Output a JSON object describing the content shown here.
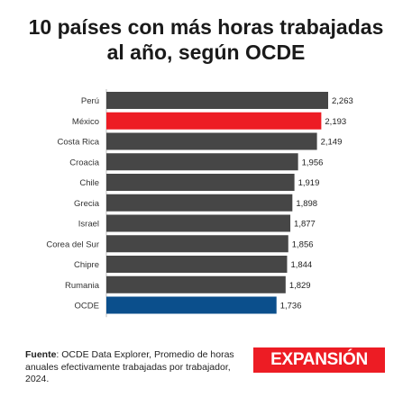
{
  "title_line1": "10 países con más horas trabajadas",
  "title_line2": "al año, según OCDE",
  "chart_data": {
    "type": "bar",
    "orientation": "horizontal",
    "categories": [
      "Perú",
      "México",
      "Costa Rica",
      "Croacia",
      "Chile",
      "Grecia",
      "Israel",
      "Corea del Sur",
      "Chipre",
      "Rumania",
      "OCDE"
    ],
    "values": [
      2263,
      2193,
      2149,
      1956,
      1919,
      1898,
      1877,
      1856,
      1844,
      1829,
      1736
    ],
    "value_labels": [
      "2,263",
      "2,193",
      "2,149",
      "1,956",
      "1,919",
      "1,898",
      "1,877",
      "1,856",
      "1,844",
      "1,829",
      "1,736"
    ],
    "bar_colors": [
      "#464646",
      "#ed1c24",
      "#464646",
      "#464646",
      "#464646",
      "#464646",
      "#464646",
      "#464646",
      "#464646",
      "#464646",
      "#0b4f8c"
    ],
    "xlim": [
      0,
      2263
    ],
    "grid": false,
    "legend": "none"
  },
  "footer": {
    "source_label": "Fuente",
    "source_text": ": OCDE Data Explorer, Promedio de horas anuales efectivamente trabajadas por trabajador, 2024."
  },
  "logo": {
    "text": "EXPANSIÓN",
    "bg_color": "#ed1c24"
  }
}
